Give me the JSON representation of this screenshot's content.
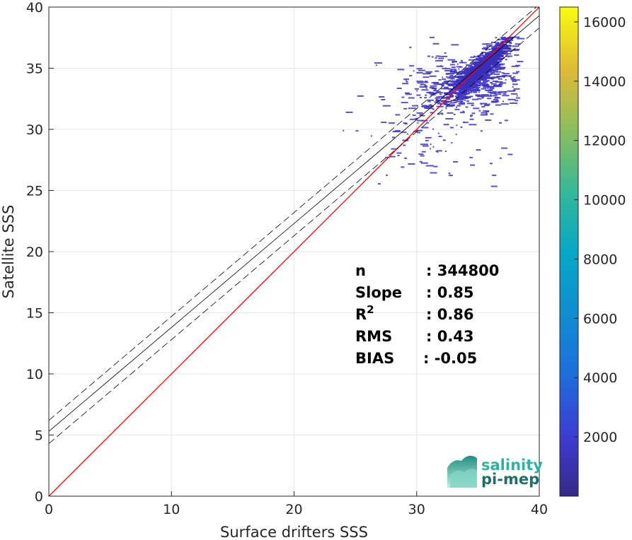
{
  "chart_data": {
    "type": "heatmap",
    "subtype": "2d-density-scatter",
    "xlabel": "Surface drifters SSS",
    "ylabel": "Satellite SSS",
    "xlim": [
      0,
      40
    ],
    "ylim": [
      0,
      40
    ],
    "x_ticks": [
      "0",
      "10",
      "20",
      "30",
      "40"
    ],
    "y_ticks": [
      "0",
      "5",
      "10",
      "15",
      "20",
      "25",
      "30",
      "35",
      "40"
    ],
    "grid": true,
    "colorbar": {
      "colormap": "parula",
      "range": [
        0,
        16500
      ],
      "ticks": [
        "2000",
        "4000",
        "6000",
        "8000",
        "10000",
        "12000",
        "14000",
        "16000"
      ],
      "tick_values": [
        2000,
        4000,
        6000,
        8000,
        10000,
        12000,
        14000,
        16000
      ]
    },
    "lines": [
      {
        "kind": "identity",
        "color": "#ff0000",
        "style": "solid",
        "intercept": 0,
        "slope": 1
      },
      {
        "kind": "fit",
        "color": "#000000",
        "style": "solid",
        "intercept": 5.3,
        "slope": 0.85
      },
      {
        "kind": "fit-upper",
        "color": "#000000",
        "style": "dashed",
        "intercept": 6.2,
        "slope": 0.85
      },
      {
        "kind": "fit-lower",
        "color": "#000000",
        "style": "dashed",
        "intercept": 4.3,
        "slope": 0.85
      }
    ],
    "stats": [
      {
        "label": "n",
        "value": ": 344800"
      },
      {
        "label": "Slope",
        "value": ": 0.85"
      },
      {
        "label": "R",
        "sup": "2",
        "value": ": 0.86"
      },
      {
        "label": "RMS",
        "value": ": 0.43"
      },
      {
        "label": "BIAS",
        "value": ": -0.05"
      }
    ]
  },
  "logo": {
    "line1": "salinity",
    "line2": "pi-mep",
    "color1": "#2fb3a0",
    "color2": "#1e6f66"
  }
}
